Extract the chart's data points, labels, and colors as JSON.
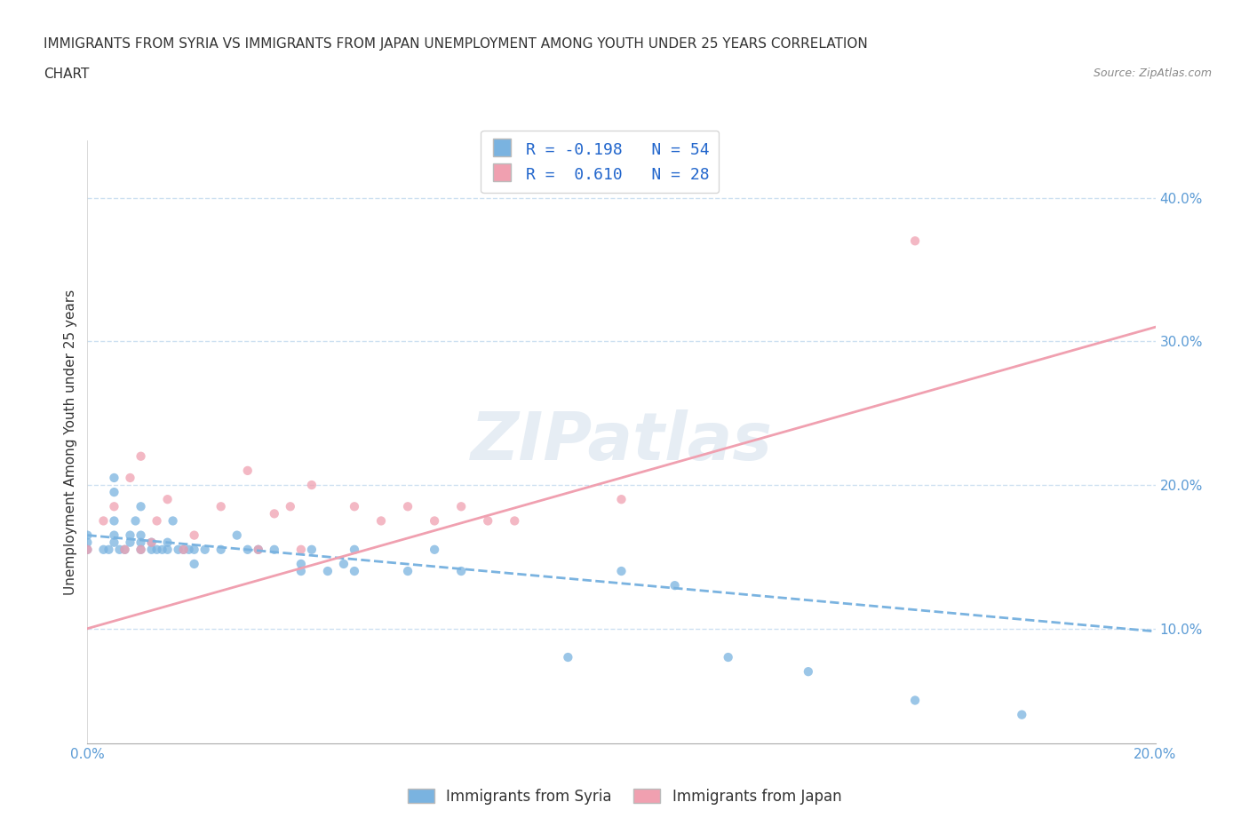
{
  "title_line1": "IMMIGRANTS FROM SYRIA VS IMMIGRANTS FROM JAPAN UNEMPLOYMENT AMONG YOUTH UNDER 25 YEARS CORRELATION",
  "title_line2": "CHART",
  "source": "Source: ZipAtlas.com",
  "ylabel": "Unemployment Among Youth under 25 years",
  "xlim": [
    0.0,
    0.2
  ],
  "ylim": [
    0.02,
    0.44
  ],
  "yticks": [
    0.1,
    0.2,
    0.3,
    0.4
  ],
  "ytick_labels": [
    "10.0%",
    "20.0%",
    "30.0%",
    "40.0%"
  ],
  "xticks": [
    0.0,
    0.05,
    0.1,
    0.15,
    0.2
  ],
  "xtick_labels": [
    "0.0%",
    "",
    "",
    "",
    "20.0%"
  ],
  "syria_color": "#7ab3e0",
  "japan_color": "#f0a0b0",
  "syria_R": -0.198,
  "syria_N": 54,
  "japan_R": 0.61,
  "japan_N": 28,
  "legend_label_syria": "Immigrants from Syria",
  "legend_label_japan": "Immigrants from Japan",
  "watermark": "ZIPatlas",
  "syria_scatter_x": [
    0.0,
    0.0,
    0.0,
    0.003,
    0.004,
    0.005,
    0.005,
    0.005,
    0.005,
    0.005,
    0.006,
    0.007,
    0.008,
    0.008,
    0.009,
    0.01,
    0.01,
    0.01,
    0.01,
    0.012,
    0.012,
    0.013,
    0.014,
    0.015,
    0.015,
    0.016,
    0.017,
    0.018,
    0.019,
    0.02,
    0.02,
    0.022,
    0.025,
    0.028,
    0.03,
    0.032,
    0.035,
    0.04,
    0.04,
    0.042,
    0.045,
    0.048,
    0.05,
    0.05,
    0.06,
    0.065,
    0.07,
    0.09,
    0.1,
    0.11,
    0.12,
    0.135,
    0.155,
    0.175
  ],
  "syria_scatter_y": [
    0.155,
    0.16,
    0.165,
    0.155,
    0.155,
    0.16,
    0.165,
    0.175,
    0.195,
    0.205,
    0.155,
    0.155,
    0.16,
    0.165,
    0.175,
    0.155,
    0.16,
    0.165,
    0.185,
    0.155,
    0.16,
    0.155,
    0.155,
    0.155,
    0.16,
    0.175,
    0.155,
    0.155,
    0.155,
    0.145,
    0.155,
    0.155,
    0.155,
    0.165,
    0.155,
    0.155,
    0.155,
    0.14,
    0.145,
    0.155,
    0.14,
    0.145,
    0.14,
    0.155,
    0.14,
    0.155,
    0.14,
    0.08,
    0.14,
    0.13,
    0.08,
    0.07,
    0.05,
    0.04
  ],
  "japan_scatter_x": [
    0.0,
    0.003,
    0.005,
    0.007,
    0.008,
    0.01,
    0.01,
    0.012,
    0.013,
    0.015,
    0.018,
    0.02,
    0.025,
    0.03,
    0.032,
    0.035,
    0.038,
    0.04,
    0.042,
    0.05,
    0.055,
    0.06,
    0.065,
    0.07,
    0.075,
    0.08,
    0.1,
    0.155
  ],
  "japan_scatter_y": [
    0.155,
    0.175,
    0.185,
    0.155,
    0.205,
    0.155,
    0.22,
    0.16,
    0.175,
    0.19,
    0.155,
    0.165,
    0.185,
    0.21,
    0.155,
    0.18,
    0.185,
    0.155,
    0.2,
    0.185,
    0.175,
    0.185,
    0.175,
    0.185,
    0.175,
    0.175,
    0.19,
    0.37
  ],
  "syria_trend_x": [
    0.0,
    0.2
  ],
  "syria_trend_y": [
    0.165,
    0.098
  ],
  "japan_trend_x": [
    0.0,
    0.2
  ],
  "japan_trend_y": [
    0.1,
    0.31
  ]
}
